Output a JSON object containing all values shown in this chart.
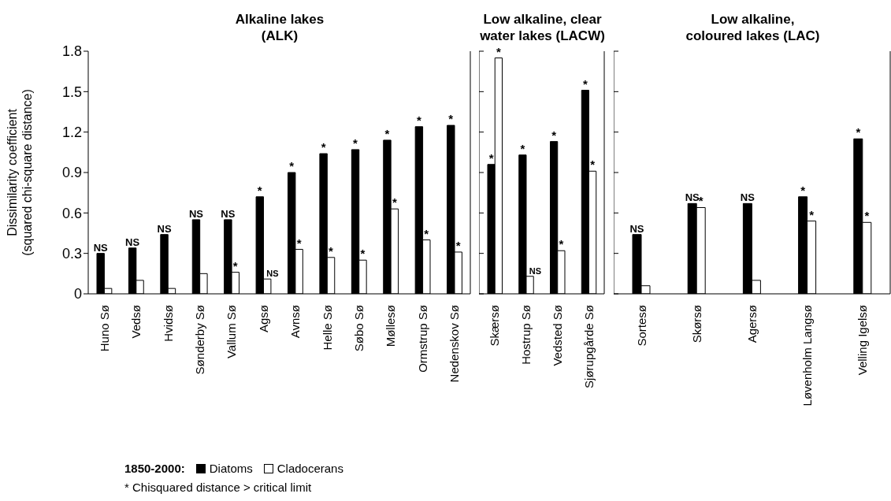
{
  "chart_data": [
    {
      "type": "bar",
      "title": "Alkaline lakes\n(ALK)",
      "ylabel": "Dissimilarity coefficient\n(squared chi-square distance)",
      "legend_title": "1850-2000:",
      "legend": "bottom",
      "categories": [
        "Huno Sø",
        "Vedsø",
        "Hvidsø",
        "Sønderby Sø",
        "Vallum Sø",
        "Agsø",
        "Avnsø",
        "Helle Sø",
        "Søbo Sø",
        "Møllesø",
        "Ormstrup Sø",
        "Nedenskov Sø"
      ],
      "series": [
        {
          "name": "Diatoms",
          "color": "#000000",
          "values": [
            0.3,
            0.34,
            0.44,
            0.55,
            0.55,
            0.72,
            0.9,
            1.04,
            1.07,
            1.14,
            1.24,
            1.25
          ],
          "value_labels": [
            "NS",
            "NS",
            "NS",
            "NS",
            "NS",
            "*",
            "*",
            "*",
            "*",
            "*",
            "*",
            "*"
          ]
        },
        {
          "name": "Cladocerans",
          "color": "#ffffff",
          "values": [
            0.04,
            0.1,
            0.04,
            0.15,
            0.16,
            0.11,
            0.33,
            0.27,
            0.25,
            0.63,
            0.4,
            0.31
          ],
          "value_labels": [
            null,
            null,
            null,
            null,
            "*",
            "NS",
            "*",
            "*",
            "*",
            "*",
            "*",
            "*"
          ]
        }
      ],
      "ylim": [
        0,
        1.8
      ],
      "yticks": [
        0,
        0.3,
        0.6,
        0.9,
        1.2,
        1.5,
        1.8
      ],
      "grid": false,
      "annotations": [
        "* Chisquared distance > critical limit"
      ]
    },
    {
      "type": "bar",
      "title": "Low alkaline, clear\nwater lakes (LACW)",
      "categories": [
        "Skærsø",
        "Hostrup Sø",
        "Vedsted Sø",
        "Sjørupgårde Sø"
      ],
      "series": [
        {
          "color": "#000000",
          "values": [
            0.96,
            1.03,
            1.13,
            1.51
          ],
          "value_labels": [
            "*",
            "*",
            "*",
            "*"
          ]
        },
        {
          "color": "#ffffff",
          "values": [
            1.75,
            0.13,
            0.32,
            0.91
          ],
          "value_labels": [
            "*",
            "NS",
            "*",
            "*"
          ]
        }
      ],
      "ylim": [
        0,
        1.8
      ],
      "yticks": [
        0,
        0.3,
        0.6,
        0.9,
        1.2,
        1.5,
        1.8
      ],
      "tick_labels": "x",
      "grid": false
    },
    {
      "type": "bar",
      "title": "Low alkaline,\ncoloured lakes (LAC)",
      "categories": [
        "Sortesø",
        "Skørsø",
        "Agersø",
        "Løvenholm Langsø",
        "Velling Igelsø"
      ],
      "series": [
        {
          "color": "#000000",
          "values": [
            0.44,
            0.67,
            0.67,
            0.72,
            1.15
          ],
          "value_labels": [
            "NS",
            "NS",
            "NS",
            "*",
            "*"
          ]
        },
        {
          "color": "#ffffff",
          "values": [
            0.06,
            0.64,
            0.1,
            0.54,
            0.53
          ],
          "value_labels": [
            null,
            "*",
            null,
            "*",
            "*"
          ]
        }
      ],
      "ylim": [
        0,
        1.8
      ],
      "yticks": [
        0,
        0.3,
        0.6,
        0.9,
        1.2,
        1.5,
        1.8
      ],
      "tick_labels": "x",
      "grid": false
    }
  ]
}
